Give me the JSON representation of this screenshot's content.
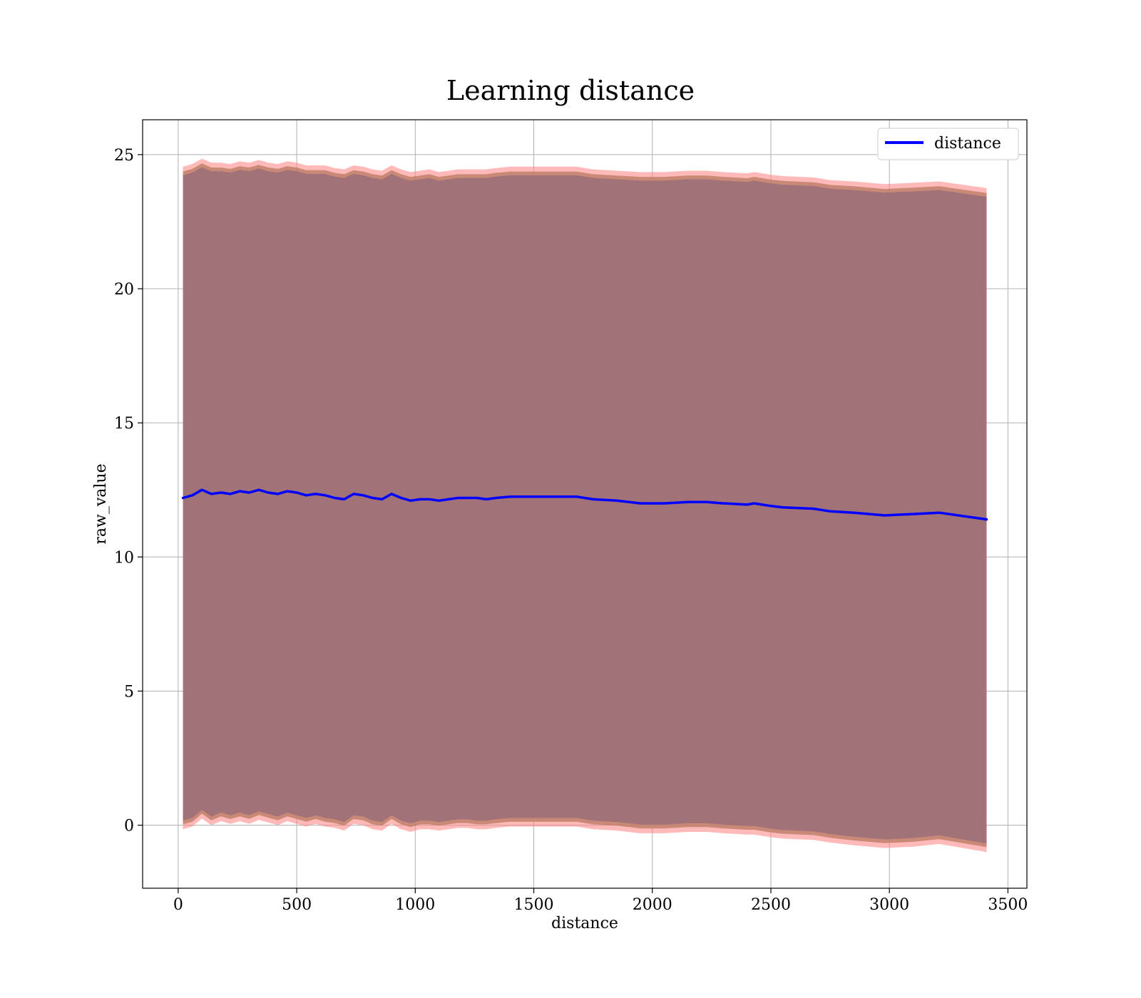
{
  "chart_data": {
    "type": "line",
    "title": "Learning distance",
    "xlabel": "distance",
    "ylabel": "raw_value",
    "xlim": [
      -150,
      3580
    ],
    "ylim": [
      -2.35,
      26.3
    ],
    "xticks": [
      0,
      500,
      1000,
      1500,
      2000,
      2500,
      3000,
      3500
    ],
    "yticks": [
      0,
      5,
      10,
      15,
      20,
      25
    ],
    "xtick_labels": [
      "0",
      "500",
      "1000",
      "1500",
      "2000",
      "2500",
      "3000",
      "3500"
    ],
    "ytick_labels": [
      "0",
      "5",
      "10",
      "15",
      "20",
      "25"
    ],
    "grid": true,
    "legend_position": "top-right",
    "colors": {
      "line": "#0000ff",
      "band_fill": "#8b4a5a",
      "band_edge": "#ff8080",
      "band_inner": "#c0806a",
      "grid": "#b0b0b0"
    },
    "series": [
      {
        "name": "distance",
        "x": [
          20,
          60,
          100,
          140,
          180,
          220,
          260,
          300,
          340,
          380,
          420,
          460,
          500,
          540,
          580,
          620,
          660,
          700,
          740,
          780,
          820,
          860,
          900,
          940,
          980,
          1020,
          1060,
          1100,
          1140,
          1180,
          1220,
          1260,
          1300,
          1340,
          1400,
          1500,
          1600,
          1680,
          1750,
          1850,
          1950,
          2050,
          2150,
          2230,
          2300,
          2400,
          2430,
          2500,
          2550,
          2680,
          2750,
          2850,
          2980,
          3100,
          3210,
          3410
        ],
        "values": [
          12.2,
          12.3,
          12.5,
          12.35,
          12.4,
          12.35,
          12.45,
          12.4,
          12.5,
          12.4,
          12.35,
          12.45,
          12.4,
          12.3,
          12.35,
          12.3,
          12.2,
          12.15,
          12.35,
          12.3,
          12.2,
          12.15,
          12.35,
          12.2,
          12.1,
          12.15,
          12.15,
          12.1,
          12.15,
          12.2,
          12.2,
          12.2,
          12.15,
          12.2,
          12.25,
          12.25,
          12.25,
          12.25,
          12.15,
          12.1,
          12.0,
          12.0,
          12.05,
          12.05,
          12.0,
          11.95,
          12.0,
          11.9,
          11.85,
          11.8,
          11.7,
          11.65,
          11.55,
          11.6,
          11.65,
          11.4
        ],
        "band_lower": [
          -0.15,
          -0.05,
          0.25,
          0.0,
          0.15,
          0.05,
          0.15,
          0.05,
          0.2,
          0.1,
          0.0,
          0.15,
          0.05,
          -0.05,
          0.05,
          -0.05,
          -0.1,
          -0.2,
          0.05,
          0.0,
          -0.15,
          -0.2,
          0.05,
          -0.15,
          -0.25,
          -0.15,
          -0.15,
          -0.2,
          -0.15,
          -0.1,
          -0.1,
          -0.15,
          -0.15,
          -0.1,
          -0.05,
          -0.05,
          -0.05,
          -0.05,
          -0.15,
          -0.2,
          -0.3,
          -0.3,
          -0.25,
          -0.25,
          -0.3,
          -0.35,
          -0.35,
          -0.45,
          -0.5,
          -0.55,
          -0.65,
          -0.75,
          -0.85,
          -0.8,
          -0.7,
          -1.0
        ],
        "band_upper": [
          24.55,
          24.65,
          24.85,
          24.7,
          24.7,
          24.65,
          24.75,
          24.7,
          24.8,
          24.7,
          24.65,
          24.75,
          24.7,
          24.6,
          24.6,
          24.6,
          24.5,
          24.45,
          24.6,
          24.55,
          24.45,
          24.4,
          24.6,
          24.45,
          24.35,
          24.4,
          24.45,
          24.35,
          24.4,
          24.45,
          24.45,
          24.45,
          24.45,
          24.5,
          24.55,
          24.55,
          24.55,
          24.55,
          24.45,
          24.4,
          24.35,
          24.35,
          24.4,
          24.4,
          24.35,
          24.3,
          24.35,
          24.25,
          24.2,
          24.15,
          24.05,
          24.0,
          23.9,
          23.95,
          24.0,
          23.75
        ]
      }
    ]
  }
}
